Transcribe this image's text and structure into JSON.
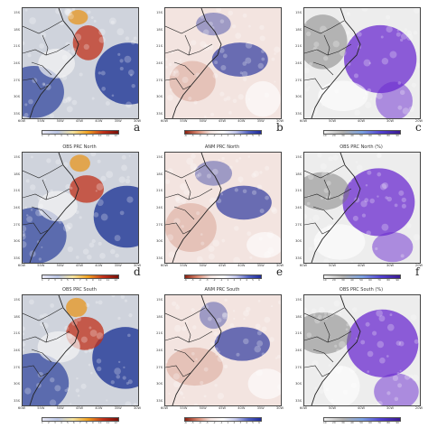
{
  "figure": {
    "panels": [
      {
        "id": "a",
        "letter": "a",
        "title": "",
        "kind": "obs"
      },
      {
        "id": "b",
        "letter": "b",
        "title": "",
        "kind": "anm"
      },
      {
        "id": "c",
        "letter": "c",
        "title": "",
        "kind": "pct"
      },
      {
        "id": "d",
        "letter": "d",
        "title": "OBS PRC North",
        "kind": "obs"
      },
      {
        "id": "e",
        "letter": "e",
        "title": "ANM PRC North",
        "kind": "anm"
      },
      {
        "id": "f",
        "letter": "f",
        "title": "OBS PRC North (%)",
        "kind": "pct"
      },
      {
        "id": "g",
        "letter": "",
        "title": "OBS PRC South",
        "kind": "obs"
      },
      {
        "id": "h",
        "letter": "",
        "title": "ANM PRC South",
        "kind": "anm"
      },
      {
        "id": "i",
        "letter": "",
        "title": "OBS PRC South (%)",
        "kind": "pct"
      }
    ],
    "lat_ticks": [
      "15S",
      "18S",
      "21S",
      "24S",
      "27S",
      "30S",
      "33S"
    ],
    "lon_ticks_left": [
      "60W",
      "55W",
      "50W",
      "45W",
      "40W",
      "35W",
      "30W"
    ],
    "lon_ticks_right": [
      "60W",
      "50W",
      "40W",
      "30W",
      "20W"
    ],
    "cbar_obs_labels": [
      "1",
      "2",
      "3",
      "4",
      "5",
      "6",
      "7",
      "8",
      "9",
      "10",
      "11",
      "12"
    ],
    "cbar_anm_labels": [
      "-6",
      "-5",
      "-4",
      "-3",
      "-2",
      "-1",
      "1",
      "2",
      "3",
      "4",
      "5",
      "6"
    ],
    "cbar_pct_labels": [
      "10",
      "20",
      "30",
      "40",
      "50",
      "60",
      "70",
      "80",
      "90"
    ],
    "colors": {
      "obs_low": "#2a3f9a",
      "obs_mid": "#d8d8d8",
      "obs_high": "#c0301a",
      "anm_neg": "#c8745e",
      "anm_pos": "#1f2b9a",
      "pct_low": "#7a7a7a",
      "pct_high": "#6a2acf",
      "outline": "#222222"
    }
  }
}
